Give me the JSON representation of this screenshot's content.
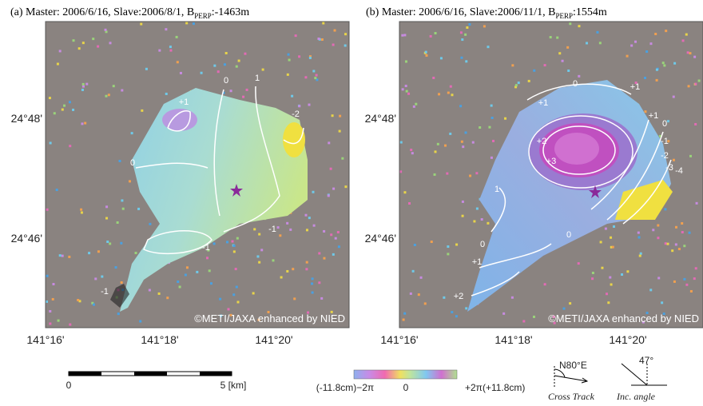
{
  "panels": [
    {
      "title": {
        "prefix": "(a) Master: 2006/6/16, Slave:2006/8/1, B",
        "subscript": "PERP",
        "suffix": ":-1463m"
      },
      "lat_labels": [
        "24°48'",
        "24°46'"
      ],
      "lon_labels": [
        "141°16'",
        "141°18'",
        "141°20'"
      ],
      "contour_labels": [
        "0",
        "1",
        "+1",
        "-2",
        "0",
        "-1",
        "-1",
        "-1"
      ],
      "credit": "©METI/JAXA enhanced by NIED"
    },
    {
      "title": {
        "prefix": "(b) Master: 2006/6/16, Slave:2006/11/1, B",
        "subscript": "PERP",
        "suffix": ":1554m"
      },
      "lat_labels": [
        "24°48'",
        "24°46'"
      ],
      "lon_labels": [
        "141°16'",
        "141°18'",
        "141°20'"
      ],
      "contour_labels": [
        "0",
        "+1",
        "+1",
        "+1",
        "0",
        "-1",
        "+2",
        "-2",
        "+3",
        "-3",
        "-4",
        "1",
        "0",
        "+1",
        "0",
        "+2"
      ],
      "credit": "©METI/JAXA enhanced by NIED"
    }
  ],
  "scale_bar": {
    "start": "0",
    "end": "5 [km]"
  },
  "colorbar": {
    "min_label": "(-11.8cm)−2π",
    "mid_label": "0",
    "max_label": "+2π(+11.8cm)"
  },
  "direction": {
    "heading": "N80°E",
    "caption": "Cross Track"
  },
  "incidence": {
    "angle": "47°",
    "caption": "Inc. angle"
  }
}
